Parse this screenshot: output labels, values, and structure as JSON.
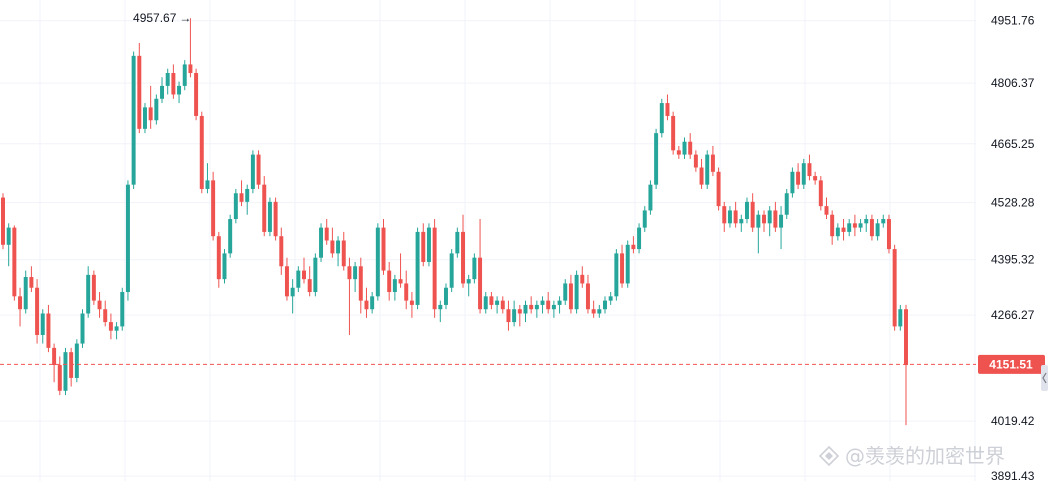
{
  "colors": {
    "up": "#26a69a",
    "down": "#ef5350",
    "grid": "#f0f3fa",
    "axis_text": "#131722",
    "price_tag": "#ef5350",
    "watermark": "#c9ccd3"
  },
  "watermark": {
    "text": "@羡羡的加密世界",
    "icon": "binance-diamond-icon"
  },
  "current_price_label": "4151.51",
  "high_marker_label": "4957.67",
  "chart_data": {
    "type": "candlestick",
    "title": "",
    "xlabel": "",
    "ylabel": "",
    "y_axis_position": "right",
    "grid": true,
    "ylim": [
      3880,
      5000
    ],
    "y_ticks": [
      "4951.76",
      "4806.37",
      "4665.25",
      "4528.28",
      "4395.32",
      "4266.27",
      "4019.42",
      "3891.43"
    ],
    "current_price": 4151.51,
    "high": 4957.67,
    "candles": [
      [
        4540,
        4550,
        4420,
        4430
      ],
      [
        4430,
        4480,
        4380,
        4470
      ],
      [
        4470,
        4475,
        4300,
        4310
      ],
      [
        4310,
        4330,
        4240,
        4280
      ],
      [
        4280,
        4370,
        4270,
        4355
      ],
      [
        4355,
        4380,
        4320,
        4330
      ],
      [
        4330,
        4350,
        4200,
        4220
      ],
      [
        4220,
        4280,
        4200,
        4270
      ],
      [
        4270,
        4290,
        4180,
        4190
      ],
      [
        4190,
        4200,
        4110,
        4150
      ],
      [
        4150,
        4170,
        4080,
        4090
      ],
      [
        4090,
        4190,
        4080,
        4180
      ],
      [
        4180,
        4190,
        4100,
        4120
      ],
      [
        4120,
        4210,
        4110,
        4200
      ],
      [
        4200,
        4280,
        4190,
        4270
      ],
      [
        4270,
        4380,
        4260,
        4360
      ],
      [
        4360,
        4370,
        4290,
        4300
      ],
      [
        4300,
        4320,
        4260,
        4280
      ],
      [
        4280,
        4300,
        4240,
        4250
      ],
      [
        4250,
        4270,
        4210,
        4230
      ],
      [
        4230,
        4250,
        4210,
        4240
      ],
      [
        4240,
        4330,
        4230,
        4320
      ],
      [
        4320,
        4580,
        4300,
        4570
      ],
      [
        4570,
        4880,
        4560,
        4870
      ],
      [
        4870,
        4900,
        4690,
        4700
      ],
      [
        4700,
        4760,
        4690,
        4750
      ],
      [
        4750,
        4800,
        4700,
        4720
      ],
      [
        4720,
        4780,
        4710,
        4770
      ],
      [
        4770,
        4820,
        4760,
        4800
      ],
      [
        4800,
        4840,
        4780,
        4830
      ],
      [
        4830,
        4850,
        4770,
        4780
      ],
      [
        4780,
        4810,
        4760,
        4800
      ],
      [
        4800,
        4860,
        4790,
        4850
      ],
      [
        4850,
        4957.67,
        4820,
        4830
      ],
      [
        4830,
        4840,
        4720,
        4730
      ],
      [
        4730,
        4740,
        4550,
        4560
      ],
      [
        4560,
        4620,
        4550,
        4580
      ],
      [
        4580,
        4600,
        4440,
        4450
      ],
      [
        4450,
        4460,
        4330,
        4350
      ],
      [
        4350,
        4420,
        4340,
        4410
      ],
      [
        4410,
        4500,
        4400,
        4490
      ],
      [
        4490,
        4560,
        4480,
        4550
      ],
      [
        4550,
        4580,
        4520,
        4530
      ],
      [
        4530,
        4570,
        4500,
        4560
      ],
      [
        4560,
        4650,
        4550,
        4640
      ],
      [
        4640,
        4650,
        4560,
        4570
      ],
      [
        4570,
        4590,
        4450,
        4460
      ],
      [
        4460,
        4540,
        4450,
        4530
      ],
      [
        4530,
        4540,
        4440,
        4450
      ],
      [
        4450,
        4470,
        4360,
        4380
      ],
      [
        4380,
        4400,
        4300,
        4310
      ],
      [
        4310,
        4350,
        4270,
        4330
      ],
      [
        4330,
        4380,
        4320,
        4370
      ],
      [
        4370,
        4400,
        4340,
        4350
      ],
      [
        4350,
        4380,
        4310,
        4320
      ],
      [
        4320,
        4410,
        4310,
        4400
      ],
      [
        4400,
        4480,
        4390,
        4470
      ],
      [
        4470,
        4490,
        4430,
        4440
      ],
      [
        4440,
        4470,
        4400,
        4410
      ],
      [
        4410,
        4450,
        4380,
        4440
      ],
      [
        4440,
        4460,
        4370,
        4380
      ],
      [
        4380,
        4400,
        4220,
        4350
      ],
      [
        4350,
        4390,
        4320,
        4380
      ],
      [
        4380,
        4400,
        4270,
        4300
      ],
      [
        4300,
        4330,
        4260,
        4280
      ],
      [
        4280,
        4320,
        4270,
        4310
      ],
      [
        4310,
        4480,
        4300,
        4470
      ],
      [
        4470,
        4490,
        4360,
        4370
      ],
      [
        4370,
        4390,
        4300,
        4320
      ],
      [
        4320,
        4360,
        4300,
        4350
      ],
      [
        4350,
        4410,
        4330,
        4340
      ],
      [
        4340,
        4370,
        4280,
        4300
      ],
      [
        4300,
        4320,
        4260,
        4290
      ],
      [
        4290,
        4470,
        4280,
        4460
      ],
      [
        4460,
        4480,
        4380,
        4390
      ],
      [
        4390,
        4480,
        4380,
        4470
      ],
      [
        4470,
        4490,
        4260,
        4280
      ],
      [
        4280,
        4300,
        4250,
        4290
      ],
      [
        4290,
        4340,
        4280,
        4330
      ],
      [
        4330,
        4420,
        4320,
        4410
      ],
      [
        4410,
        4470,
        4400,
        4460
      ],
      [
        4460,
        4500,
        4330,
        4340
      ],
      [
        4340,
        4360,
        4310,
        4350
      ],
      [
        4350,
        4410,
        4340,
        4400
      ],
      [
        4400,
        4490,
        4270,
        4280
      ],
      [
        4280,
        4320,
        4270,
        4310
      ],
      [
        4310,
        4320,
        4280,
        4290
      ],
      [
        4290,
        4310,
        4270,
        4300
      ],
      [
        4300,
        4310,
        4270,
        4280
      ],
      [
        4280,
        4300,
        4230,
        4250
      ],
      [
        4250,
        4300,
        4240,
        4280
      ],
      [
        4280,
        4290,
        4240,
        4270
      ],
      [
        4270,
        4300,
        4250,
        4290
      ],
      [
        4290,
        4310,
        4270,
        4280
      ],
      [
        4280,
        4300,
        4260,
        4290
      ],
      [
        4290,
        4310,
        4270,
        4300
      ],
      [
        4300,
        4320,
        4270,
        4280
      ],
      [
        4280,
        4300,
        4260,
        4290
      ],
      [
        4290,
        4310,
        4270,
        4300
      ],
      [
        4300,
        4350,
        4290,
        4340
      ],
      [
        4340,
        4360,
        4270,
        4280
      ],
      [
        4280,
        4370,
        4270,
        4360
      ],
      [
        4360,
        4380,
        4330,
        4340
      ],
      [
        4340,
        4360,
        4270,
        4280
      ],
      [
        4280,
        4300,
        4260,
        4270
      ],
      [
        4270,
        4290,
        4260,
        4280
      ],
      [
        4280,
        4310,
        4270,
        4300
      ],
      [
        4300,
        4320,
        4290,
        4310
      ],
      [
        4310,
        4420,
        4300,
        4410
      ],
      [
        4410,
        4430,
        4330,
        4340
      ],
      [
        4340,
        4440,
        4330,
        4430
      ],
      [
        4430,
        4450,
        4410,
        4420
      ],
      [
        4420,
        4480,
        4410,
        4470
      ],
      [
        4470,
        4520,
        4460,
        4510
      ],
      [
        4510,
        4580,
        4500,
        4570
      ],
      [
        4570,
        4700,
        4560,
        4690
      ],
      [
        4690,
        4770,
        4680,
        4760
      ],
      [
        4760,
        4780,
        4720,
        4730
      ],
      [
        4730,
        4740,
        4640,
        4650
      ],
      [
        4650,
        4660,
        4630,
        4640
      ],
      [
        4640,
        4680,
        4630,
        4670
      ],
      [
        4670,
        4690,
        4630,
        4640
      ],
      [
        4640,
        4650,
        4600,
        4610
      ],
      [
        4610,
        4630,
        4560,
        4570
      ],
      [
        4570,
        4650,
        4560,
        4640
      ],
      [
        4640,
        4660,
        4590,
        4600
      ],
      [
        4600,
        4610,
        4510,
        4520
      ],
      [
        4520,
        4530,
        4460,
        4480
      ],
      [
        4480,
        4520,
        4470,
        4510
      ],
      [
        4510,
        4530,
        4470,
        4480
      ],
      [
        4480,
        4500,
        4460,
        4490
      ],
      [
        4490,
        4540,
        4480,
        4530
      ],
      [
        4530,
        4550,
        4460,
        4470
      ],
      [
        4470,
        4510,
        4410,
        4500
      ],
      [
        4500,
        4510,
        4460,
        4480
      ],
      [
        4480,
        4520,
        4450,
        4510
      ],
      [
        4510,
        4530,
        4460,
        4470
      ],
      [
        4470,
        4520,
        4420,
        4500
      ],
      [
        4500,
        4560,
        4490,
        4550
      ],
      [
        4550,
        4610,
        4540,
        4600
      ],
      [
        4600,
        4620,
        4560,
        4570
      ],
      [
        4570,
        4630,
        4560,
        4620
      ],
      [
        4620,
        4640,
        4580,
        4590
      ],
      [
        4590,
        4600,
        4570,
        4580
      ],
      [
        4580,
        4590,
        4510,
        4520
      ],
      [
        4520,
        4540,
        4490,
        4500
      ],
      [
        4500,
        4510,
        4430,
        4450
      ],
      [
        4450,
        4480,
        4440,
        4470
      ],
      [
        4470,
        4490,
        4440,
        4460
      ],
      [
        4460,
        4490,
        4450,
        4480
      ],
      [
        4480,
        4500,
        4450,
        4470
      ],
      [
        4470,
        4490,
        4460,
        4480
      ],
      [
        4480,
        4500,
        4460,
        4490
      ],
      [
        4490,
        4500,
        4440,
        4450
      ],
      [
        4450,
        4490,
        4440,
        4480
      ],
      [
        4480,
        4500,
        4470,
        4490
      ],
      [
        4490,
        4500,
        4410,
        4420
      ],
      [
        4420,
        4430,
        4230,
        4240
      ],
      [
        4240,
        4290,
        4230,
        4280
      ],
      [
        4280,
        4290,
        4010,
        4150
      ]
    ]
  }
}
